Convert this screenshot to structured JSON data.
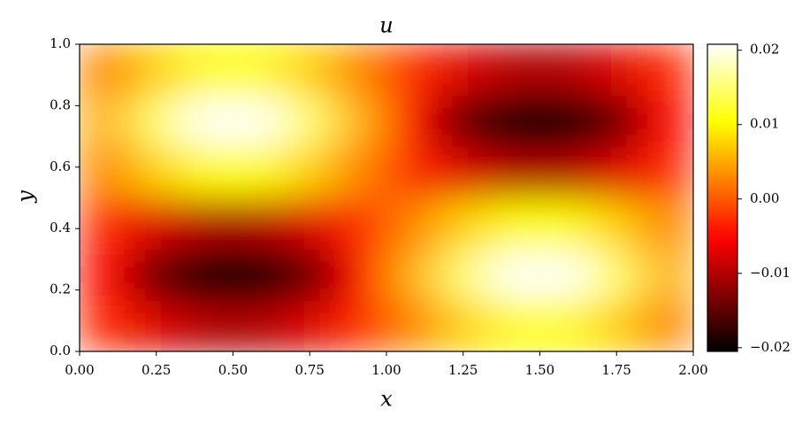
{
  "chart_data": {
    "type": "heatmap",
    "title": "u",
    "x_label": "x",
    "y_label": "y",
    "colormap": "hot",
    "xlim": [
      0,
      2
    ],
    "ylim": [
      0,
      1
    ],
    "xticks": [
      {
        "value": 0,
        "label": "0.00"
      },
      {
        "value": 0.25,
        "label": "0.25"
      },
      {
        "value": 0.5,
        "label": "0.50"
      },
      {
        "value": 0.75,
        "label": "0.75"
      },
      {
        "value": 1,
        "label": "1.00"
      },
      {
        "value": 1.25,
        "label": "1.25"
      },
      {
        "value": 1.5,
        "label": "1.50"
      },
      {
        "value": 1.75,
        "label": "1.75"
      },
      {
        "value": 2,
        "label": "2.00"
      }
    ],
    "yticks": [
      {
        "value": 0,
        "label": "0.0"
      },
      {
        "value": 0.2,
        "label": "0.2"
      },
      {
        "value": 0.4,
        "label": "0.4"
      },
      {
        "value": 0.6,
        "label": "0.6"
      },
      {
        "value": 0.8,
        "label": "0.8"
      },
      {
        "value": 1,
        "label": "1.0"
      }
    ],
    "zlim": [
      -0.0205,
      0.0208
    ],
    "zticks": [
      {
        "value": -0.02,
        "label": "−0.02"
      },
      {
        "value": -0.01,
        "label": "−0.01"
      },
      {
        "value": 0,
        "label": "0.00"
      },
      0.01,
      0.02
    ],
    "z": [
      [
        -0.0027,
        -0.0074,
        -0.0101,
        -0.0101,
        -0.0074,
        -0.0027,
        0.0027,
        0.0074,
        0.0101,
        0.0101,
        0.0074,
        0.0027
      ],
      [
        -0.0054,
        -0.0148,
        -0.0203,
        -0.0203,
        -0.0148,
        -0.0054,
        0.0054,
        0.0148,
        0.0203,
        0.0203,
        0.0148,
        0.0054
      ],
      [
        -0.0027,
        -0.0074,
        -0.0101,
        -0.0101,
        -0.0074,
        -0.0027,
        0.0027,
        0.0074,
        0.0101,
        0.0101,
        0.0074,
        0.0027
      ],
      [
        0.0027,
        0.0074,
        0.0101,
        0.0101,
        0.0074,
        0.0027,
        -0.0027,
        -0.0074,
        -0.0101,
        -0.0101,
        -0.0074,
        -0.0027
      ],
      [
        0.0054,
        0.0148,
        0.0203,
        0.0203,
        0.0148,
        0.0054,
        -0.0054,
        -0.0148,
        -0.0203,
        -0.0203,
        -0.0148,
        -0.0054
      ],
      [
        0.0027,
        0.0074,
        0.0101,
        0.0101,
        0.0074,
        0.0027,
        -0.0027,
        -0.0074,
        -0.0101,
        -0.0101,
        -0.0074,
        -0.0027
      ]
    ]
  }
}
